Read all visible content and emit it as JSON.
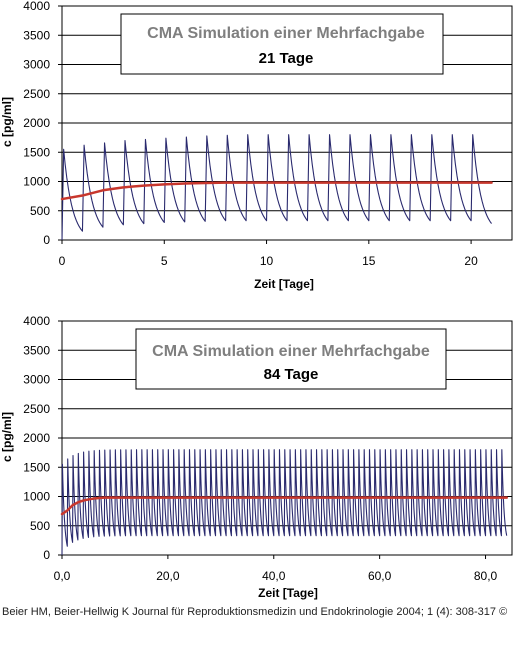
{
  "colors": {
    "plot_bg": "#ffffff",
    "grid": "#000000",
    "series_1": "#2a2a6e",
    "series_2": "#c8372d",
    "box_border": "#000000",
    "box_title": "#7f7f7f"
  },
  "chart_data": [
    {
      "type": "line",
      "title": "CMA Simulation einer Mehrfachgabe",
      "subtitle": "21 Tage",
      "xlabel": "Zeit [Tage]",
      "ylabel": "c [pg/ml]",
      "xlim": [
        0,
        22
      ],
      "ylim": [
        0,
        4000
      ],
      "x_ticks": [
        0,
        5,
        10,
        15,
        20
      ],
      "x_tick_labels": [
        "0",
        "5",
        "10",
        "15",
        "20"
      ],
      "y_ticks": [
        0,
        500,
        1000,
        1500,
        2000,
        2500,
        3000,
        3500,
        4000
      ],
      "y_tick_labels": [
        "0",
        "500",
        "1000",
        "1500",
        "2000",
        "2500",
        "3000",
        "3500",
        "4000"
      ],
      "grid": "horizontal",
      "series": [
        {
          "color": "#2a2a6e",
          "dose_interval": 1,
          "n_doses": 21,
          "peak_values": [
            1550,
            1620,
            1660,
            1700,
            1720,
            1740,
            1760,
            1780,
            1790,
            1800,
            1800,
            1800,
            1800,
            1800,
            1800,
            1800,
            1800,
            1800,
            1800,
            1800,
            1800
          ],
          "trough_values": [
            150,
            220,
            260,
            280,
            300,
            310,
            320,
            330,
            330,
            330,
            330,
            330,
            330,
            330,
            330,
            330,
            330,
            330,
            330,
            330,
            280
          ]
        },
        {
          "color": "#c8372d",
          "points": [
            [
              0,
              700
            ],
            [
              1,
              760
            ],
            [
              2,
              850
            ],
            [
              3,
              900
            ],
            [
              4,
              930
            ],
            [
              5,
              950
            ],
            [
              6,
              965
            ],
            [
              7,
              975
            ],
            [
              8,
              980
            ],
            [
              10,
              980
            ],
            [
              15,
              980
            ],
            [
              20,
              980
            ],
            [
              21,
              980
            ]
          ]
        }
      ]
    },
    {
      "type": "line",
      "title": "CMA Simulation einer Mehrfachgabe",
      "subtitle": "84 Tage",
      "xlabel": "Zeit [Tage]",
      "ylabel": "c [pg/ml]",
      "xlim": [
        0,
        85
      ],
      "ylim": [
        0,
        4000
      ],
      "x_ticks": [
        0,
        20,
        40,
        60,
        80
      ],
      "x_tick_labels": [
        "0,0",
        "20,0",
        "40,0",
        "60,0",
        "80,0"
      ],
      "y_ticks": [
        0,
        500,
        1000,
        1500,
        2000,
        2500,
        3000,
        3500,
        4000
      ],
      "y_tick_labels": [
        "0",
        "500",
        "1000",
        "1500",
        "2000",
        "2500",
        "3000",
        "3500",
        "4000"
      ],
      "grid": "horizontal",
      "series": [
        {
          "color": "#2a2a6e",
          "dose_interval": 1,
          "n_doses": 84,
          "peak_initial": 1550,
          "peak_steady": 1800,
          "trough_initial": 150,
          "trough_steady": 330
        },
        {
          "color": "#c8372d",
          "points": [
            [
              0,
              700
            ],
            [
              1,
              760
            ],
            [
              2,
              850
            ],
            [
              3,
              900
            ],
            [
              4,
              930
            ],
            [
              5,
              950
            ],
            [
              6,
              965
            ],
            [
              7,
              975
            ],
            [
              8,
              980
            ],
            [
              20,
              980
            ],
            [
              40,
              980
            ],
            [
              60,
              980
            ],
            [
              84,
              980
            ]
          ]
        }
      ]
    }
  ],
  "citation": "Beier HM, Beier-Hellwig K Journal für Reproduktionsmedizin und Endokrinologie 2004; 1 (4): 308-317 ©"
}
